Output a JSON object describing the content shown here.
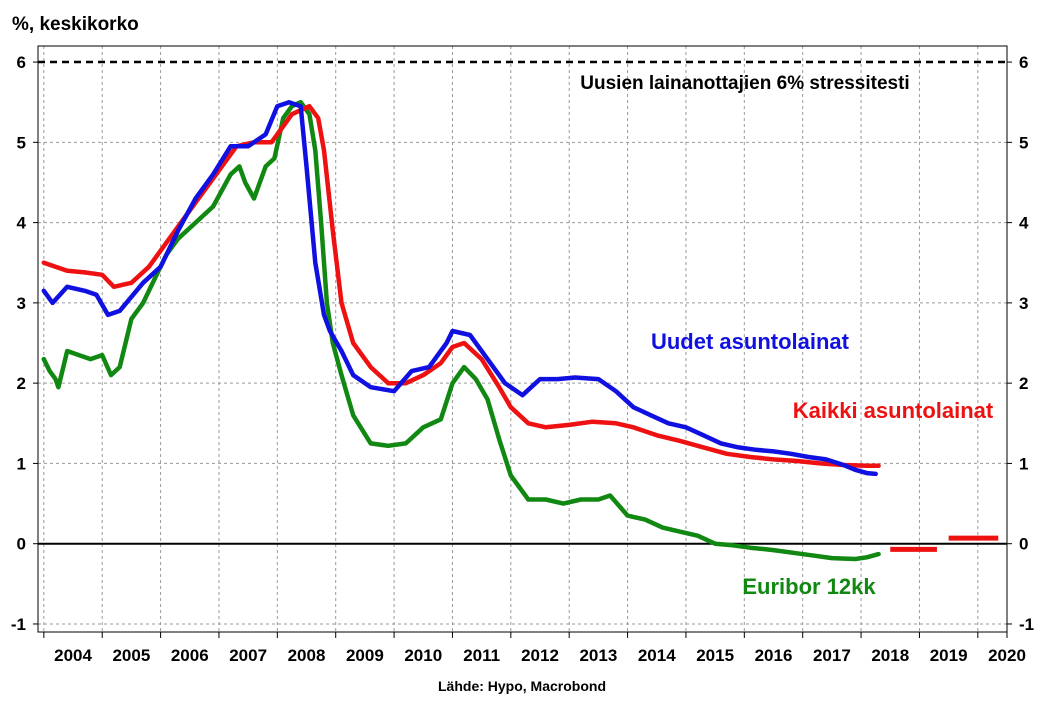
{
  "chart_data": {
    "type": "line",
    "ylabel": "%, keskikorko",
    "source": "Lähde: Hypo, Macrobond",
    "xlim": [
      2003.9,
      2020.5
    ],
    "ylim": [
      -1.1,
      6.2
    ],
    "yticks": [
      "-1",
      "0",
      "1",
      "2",
      "3",
      "4",
      "5",
      "6"
    ],
    "xticks": [
      "2004",
      "2005",
      "2006",
      "2007",
      "2008",
      "2009",
      "2010",
      "2011",
      "2012",
      "2013",
      "2014",
      "2015",
      "2016",
      "2017",
      "2018",
      "2019",
      "2020"
    ],
    "grid": true,
    "stress_line": {
      "value": 6,
      "label": "Uusien lainanottajien 6% stressitesti",
      "color": "#000000"
    },
    "zero_line": 0,
    "series": [
      {
        "name": "Uudet asuntolainat",
        "color": "#1010e0",
        "x": [
          2004.0,
          2004.15,
          2004.4,
          2004.7,
          2004.9,
          2005.1,
          2005.3,
          2005.7,
          2006.0,
          2006.3,
          2006.6,
          2006.9,
          2007.2,
          2007.5,
          2007.8,
          2008.0,
          2008.2,
          2008.4,
          2008.5,
          2008.65,
          2008.8,
          2008.9,
          2009.1,
          2009.3,
          2009.6,
          2010.0,
          2010.3,
          2010.6,
          2010.9,
          2011.0,
          2011.3,
          2011.6,
          2011.9,
          2012.2,
          2012.5,
          2012.8,
          2013.1,
          2013.5,
          2013.8,
          2014.1,
          2014.4,
          2014.7,
          2015.0,
          2015.3,
          2015.6,
          2015.9,
          2016.2,
          2016.5,
          2016.8,
          2017.1,
          2017.4,
          2017.7,
          2017.9,
          2018.1,
          2018.25
        ],
        "values": [
          3.15,
          3.0,
          3.2,
          3.15,
          3.1,
          2.85,
          2.9,
          3.25,
          3.45,
          3.9,
          4.3,
          4.6,
          4.95,
          4.95,
          5.1,
          5.45,
          5.5,
          5.45,
          4.7,
          3.5,
          2.85,
          2.65,
          2.4,
          2.1,
          1.95,
          1.9,
          2.15,
          2.2,
          2.5,
          2.65,
          2.6,
          2.3,
          2.0,
          1.85,
          2.05,
          2.05,
          2.07,
          2.05,
          1.9,
          1.7,
          1.6,
          1.5,
          1.45,
          1.35,
          1.25,
          1.2,
          1.17,
          1.15,
          1.12,
          1.08,
          1.05,
          0.98,
          0.92,
          0.88,
          0.87
        ]
      },
      {
        "name": "Kaikki asuntolainat",
        "color": "#ee1111",
        "x": [
          2004.0,
          2004.4,
          2004.7,
          2005.0,
          2005.2,
          2005.5,
          2005.8,
          2006.1,
          2006.4,
          2006.7,
          2007.0,
          2007.3,
          2007.6,
          2007.9,
          2008.1,
          2008.25,
          2008.4,
          2008.55,
          2008.7,
          2008.8,
          2008.95,
          2009.1,
          2009.3,
          2009.6,
          2009.9,
          2010.2,
          2010.5,
          2010.8,
          2011.0,
          2011.2,
          2011.5,
          2011.8,
          2012.0,
          2012.3,
          2012.6,
          2013.0,
          2013.4,
          2013.8,
          2014.1,
          2014.5,
          2014.9,
          2015.3,
          2015.7,
          2016.1,
          2016.5,
          2016.9,
          2017.3,
          2017.7,
          2018.1,
          2018.3
        ],
        "values": [
          3.5,
          3.4,
          3.38,
          3.35,
          3.2,
          3.25,
          3.45,
          3.75,
          4.05,
          4.35,
          4.65,
          4.95,
          5.0,
          5.0,
          5.2,
          5.35,
          5.4,
          5.45,
          5.3,
          4.9,
          3.9,
          3.0,
          2.5,
          2.2,
          2.0,
          2.0,
          2.1,
          2.25,
          2.45,
          2.5,
          2.3,
          1.95,
          1.7,
          1.5,
          1.45,
          1.48,
          1.52,
          1.5,
          1.45,
          1.35,
          1.28,
          1.2,
          1.12,
          1.08,
          1.05,
          1.03,
          1.0,
          0.98,
          0.97,
          0.97
        ]
      },
      {
        "name": "Euribor 12kk",
        "color": "#118811",
        "x": [
          2004.0,
          2004.1,
          2004.2,
          2004.25,
          2004.4,
          2004.6,
          2004.8,
          2005.0,
          2005.15,
          2005.3,
          2005.5,
          2005.7,
          2005.9,
          2006.1,
          2006.3,
          2006.6,
          2006.9,
          2007.2,
          2007.35,
          2007.45,
          2007.6,
          2007.8,
          2007.95,
          2008.1,
          2008.25,
          2008.4,
          2008.55,
          2008.65,
          2008.75,
          2008.85,
          2008.95,
          2009.1,
          2009.3,
          2009.6,
          2009.9,
          2010.2,
          2010.5,
          2010.8,
          2011.0,
          2011.2,
          2011.4,
          2011.6,
          2011.8,
          2012.0,
          2012.3,
          2012.6,
          2012.9,
          2013.2,
          2013.5,
          2013.7,
          2014.0,
          2014.3,
          2014.6,
          2014.9,
          2015.2,
          2015.5,
          2015.8,
          2016.1,
          2016.5,
          2016.9,
          2017.2,
          2017.5,
          2017.9,
          2018.1,
          2018.3
        ],
        "values": [
          2.3,
          2.15,
          2.05,
          1.95,
          2.4,
          2.35,
          2.3,
          2.35,
          2.1,
          2.2,
          2.8,
          3.0,
          3.3,
          3.6,
          3.8,
          4.0,
          4.2,
          4.6,
          4.7,
          4.5,
          4.3,
          4.7,
          4.8,
          5.3,
          5.45,
          5.5,
          5.35,
          4.9,
          4.0,
          3.0,
          2.5,
          2.1,
          1.6,
          1.25,
          1.22,
          1.25,
          1.45,
          1.55,
          2.0,
          2.2,
          2.05,
          1.8,
          1.3,
          0.85,
          0.55,
          0.55,
          0.5,
          0.55,
          0.55,
          0.6,
          0.35,
          0.3,
          0.2,
          0.15,
          0.1,
          0.0,
          -0.02,
          -0.05,
          -0.08,
          -0.12,
          -0.15,
          -0.18,
          -0.19,
          -0.17,
          -0.13
        ]
      }
    ],
    "forecasts": [
      {
        "x": [
          2018.5,
          2019.3
        ],
        "values": [
          -0.07,
          -0.07
        ],
        "color": "#ee1111"
      },
      {
        "x": [
          2019.5,
          2020.35
        ],
        "values": [
          0.07,
          0.07
        ],
        "color": "#ee1111"
      }
    ]
  },
  "labels": {
    "uudet": "Uudet asuntolainat",
    "kaikki": "Kaikki asuntolainat",
    "euribor": "Euribor 12kk"
  }
}
